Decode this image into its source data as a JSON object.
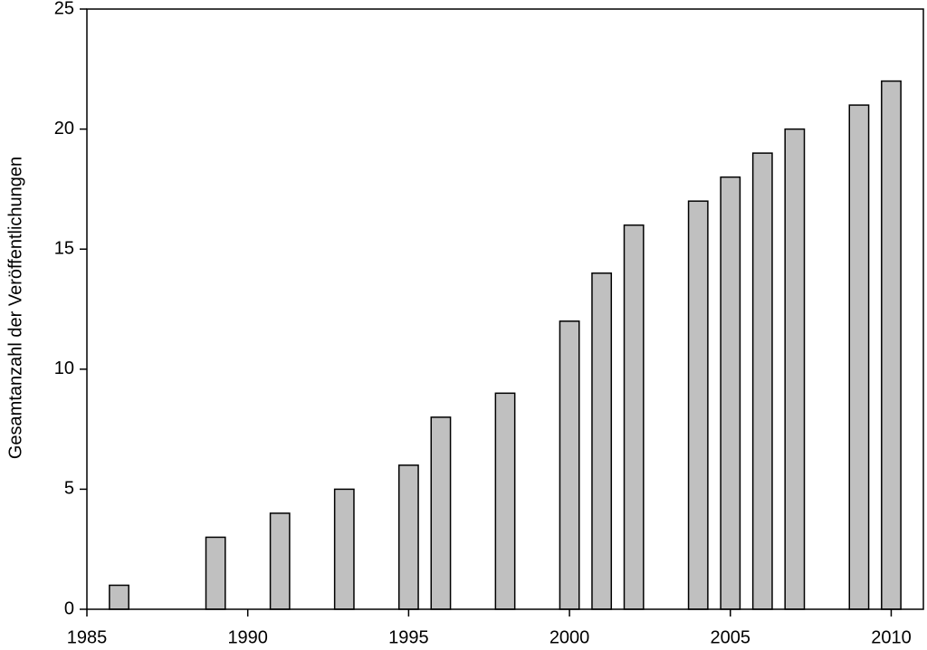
{
  "chart_data": {
    "type": "bar",
    "y_label": "Gesamtanzahl der Veröffentlichungen",
    "x": [
      1986,
      1989,
      1991,
      1993,
      1995,
      1996,
      1998,
      2000,
      2001,
      2002,
      2004,
      2005,
      2006,
      2007,
      2009,
      2010
    ],
    "values": [
      1,
      3,
      4,
      5,
      6,
      8,
      9,
      12,
      14,
      16,
      17,
      18,
      19,
      20,
      21,
      22
    ],
    "color": "#c0c0c0",
    "xlim": [
      1985,
      2011
    ],
    "xticks": [
      1985,
      1990,
      1995,
      2000,
      2005,
      2010
    ],
    "ylim": [
      0,
      25
    ],
    "yticks": [
      0,
      5,
      10,
      15,
      20,
      25
    ]
  }
}
